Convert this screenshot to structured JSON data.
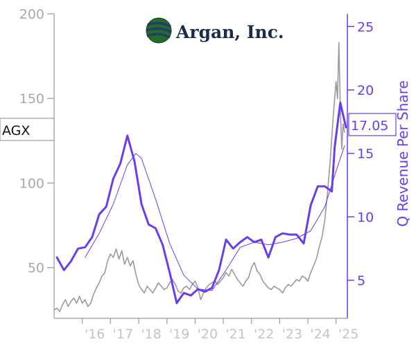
{
  "brand": {
    "name": "Argan, Inc."
  },
  "ticker": "AGX",
  "chart_data": {
    "type": "line",
    "y_right_label": "Q Revenue Per Share",
    "last_value_label": "17.05",
    "x_tick_labels": [
      "'16",
      "'17",
      "'18",
      "'19",
      "'20",
      "'21",
      "'22",
      "'23",
      "'24",
      "'25"
    ],
    "x_tick_years": [
      2016,
      2017,
      2018,
      2019,
      2020,
      2021,
      2022,
      2023,
      2024,
      2025
    ],
    "x_range": [
      2015.0,
      2025.4
    ],
    "y_left_range": [
      20,
      200
    ],
    "y_left_ticks": [
      50,
      100,
      150,
      200
    ],
    "y_right_range": [
      2,
      26
    ],
    "y_right_ticks": [
      5,
      10,
      15,
      20,
      25
    ],
    "colors": {
      "price": "#999999",
      "revenue": "#6a3cf0",
      "trend": "#6a3cf0",
      "axis": "#999999"
    },
    "series": [
      {
        "name": "",
        "axis": "left",
        "values": [
          [
            2015.0,
            25
          ],
          [
            2015.1,
            26
          ],
          [
            2015.2,
            24
          ],
          [
            2015.3,
            28
          ],
          [
            2015.4,
            31
          ],
          [
            2015.5,
            27
          ],
          [
            2015.6,
            30
          ],
          [
            2015.7,
            32
          ],
          [
            2015.8,
            29
          ],
          [
            2015.9,
            33
          ],
          [
            2016.0,
            29
          ],
          [
            2016.1,
            31
          ],
          [
            2016.2,
            27
          ],
          [
            2016.3,
            29
          ],
          [
            2016.4,
            34
          ],
          [
            2016.5,
            38
          ],
          [
            2016.6,
            41
          ],
          [
            2016.7,
            45
          ],
          [
            2016.8,
            47
          ],
          [
            2016.9,
            54
          ],
          [
            2017.0,
            58
          ],
          [
            2017.1,
            56
          ],
          [
            2017.2,
            61
          ],
          [
            2017.3,
            55
          ],
          [
            2017.4,
            60
          ],
          [
            2017.5,
            52
          ],
          [
            2017.6,
            56
          ],
          [
            2017.7,
            51
          ],
          [
            2017.8,
            54
          ],
          [
            2017.9,
            46
          ],
          [
            2018.0,
            40
          ],
          [
            2018.1,
            37
          ],
          [
            2018.2,
            35
          ],
          [
            2018.3,
            39
          ],
          [
            2018.4,
            37
          ],
          [
            2018.5,
            35
          ],
          [
            2018.6,
            38
          ],
          [
            2018.7,
            41
          ],
          [
            2018.8,
            39
          ],
          [
            2018.9,
            37
          ],
          [
            2019.0,
            38
          ],
          [
            2019.1,
            41
          ],
          [
            2019.2,
            43
          ],
          [
            2019.3,
            40
          ],
          [
            2019.4,
            36
          ],
          [
            2019.5,
            35
          ],
          [
            2019.6,
            38
          ],
          [
            2019.7,
            39
          ],
          [
            2019.8,
            37
          ],
          [
            2019.9,
            40
          ],
          [
            2020.0,
            42
          ],
          [
            2020.1,
            38
          ],
          [
            2020.2,
            31
          ],
          [
            2020.3,
            35
          ],
          [
            2020.4,
            38
          ],
          [
            2020.5,
            40
          ],
          [
            2020.6,
            41
          ],
          [
            2020.7,
            42
          ],
          [
            2020.8,
            40
          ],
          [
            2020.9,
            42
          ],
          [
            2021.0,
            44
          ],
          [
            2021.1,
            47
          ],
          [
            2021.2,
            45
          ],
          [
            2021.3,
            49
          ],
          [
            2021.4,
            46
          ],
          [
            2021.5,
            43
          ],
          [
            2021.6,
            41
          ],
          [
            2021.7,
            39
          ],
          [
            2021.8,
            42
          ],
          [
            2021.9,
            44
          ],
          [
            2022.0,
            50
          ],
          [
            2022.1,
            53
          ],
          [
            2022.2,
            48
          ],
          [
            2022.3,
            46
          ],
          [
            2022.4,
            42
          ],
          [
            2022.5,
            40
          ],
          [
            2022.6,
            38
          ],
          [
            2022.7,
            37
          ],
          [
            2022.8,
            39
          ],
          [
            2022.9,
            38
          ],
          [
            2023.0,
            37
          ],
          [
            2023.1,
            35
          ],
          [
            2023.2,
            38
          ],
          [
            2023.3,
            40
          ],
          [
            2023.4,
            39
          ],
          [
            2023.5,
            41
          ],
          [
            2023.6,
            43
          ],
          [
            2023.7,
            42
          ],
          [
            2023.8,
            45
          ],
          [
            2023.9,
            44
          ],
          [
            2024.0,
            42
          ],
          [
            2024.1,
            47
          ],
          [
            2024.2,
            51
          ],
          [
            2024.3,
            55
          ],
          [
            2024.4,
            62
          ],
          [
            2024.5,
            68
          ],
          [
            2024.6,
            78
          ],
          [
            2024.7,
            95
          ],
          [
            2024.8,
            115
          ],
          [
            2024.9,
            140
          ],
          [
            2025.0,
            160
          ],
          [
            2025.05,
            150
          ],
          [
            2025.1,
            183
          ],
          [
            2025.15,
            145
          ],
          [
            2025.2,
            120
          ],
          [
            2025.25,
            135
          ],
          [
            2025.3,
            130
          ]
        ]
      },
      {
        "name": "",
        "axis": "right",
        "values": [
          [
            2015.1,
            6.8
          ],
          [
            2015.35,
            5.8
          ],
          [
            2015.6,
            6.5
          ],
          [
            2015.85,
            7.5
          ],
          [
            2016.1,
            7.6
          ],
          [
            2016.35,
            8.4
          ],
          [
            2016.6,
            10.2
          ],
          [
            2016.85,
            10.8
          ],
          [
            2017.1,
            13.0
          ],
          [
            2017.35,
            14.2
          ],
          [
            2017.6,
            16.4
          ],
          [
            2017.85,
            14.4
          ],
          [
            2018.1,
            11.0
          ],
          [
            2018.35,
            9.4
          ],
          [
            2018.6,
            9.1
          ],
          [
            2018.85,
            7.8
          ],
          [
            2019.1,
            5.6
          ],
          [
            2019.35,
            3.2
          ],
          [
            2019.6,
            4.0
          ],
          [
            2019.85,
            3.8
          ],
          [
            2020.1,
            4.3
          ],
          [
            2020.35,
            4.1
          ],
          [
            2020.6,
            4.4
          ],
          [
            2020.85,
            5.8
          ],
          [
            2021.1,
            8.2
          ],
          [
            2021.35,
            7.5
          ],
          [
            2021.6,
            8.0
          ],
          [
            2021.85,
            8.4
          ],
          [
            2022.1,
            8.0
          ],
          [
            2022.35,
            8.2
          ],
          [
            2022.6,
            6.8
          ],
          [
            2022.85,
            8.4
          ],
          [
            2023.1,
            8.7
          ],
          [
            2023.35,
            8.6
          ],
          [
            2023.6,
            8.6
          ],
          [
            2023.85,
            7.9
          ],
          [
            2024.1,
            10.9
          ],
          [
            2024.35,
            12.4
          ],
          [
            2024.6,
            12.4
          ],
          [
            2024.85,
            12.0
          ],
          [
            2024.95,
            15.5
          ],
          [
            2025.15,
            19.0
          ],
          [
            2025.35,
            17.05
          ]
        ]
      },
      {
        "name": "",
        "axis": "right",
        "values": [
          [
            2016.1,
            6.8
          ],
          [
            2016.6,
            8.7
          ],
          [
            2017.1,
            11.0
          ],
          [
            2017.6,
            14.1
          ],
          [
            2017.9,
            15.0
          ],
          [
            2018.1,
            14.6
          ],
          [
            2018.6,
            11.4
          ],
          [
            2019.1,
            7.9
          ],
          [
            2019.6,
            5.4
          ],
          [
            2020.1,
            4.3
          ],
          [
            2020.6,
            4.2
          ],
          [
            2021.1,
            5.8
          ],
          [
            2021.6,
            7.6
          ],
          [
            2022.1,
            8.0
          ],
          [
            2022.6,
            7.8
          ],
          [
            2023.1,
            8.0
          ],
          [
            2023.6,
            8.3
          ],
          [
            2024.1,
            8.9
          ],
          [
            2024.6,
            10.8
          ],
          [
            2025.0,
            13.6
          ],
          [
            2025.3,
            15.6
          ]
        ]
      }
    ]
  }
}
